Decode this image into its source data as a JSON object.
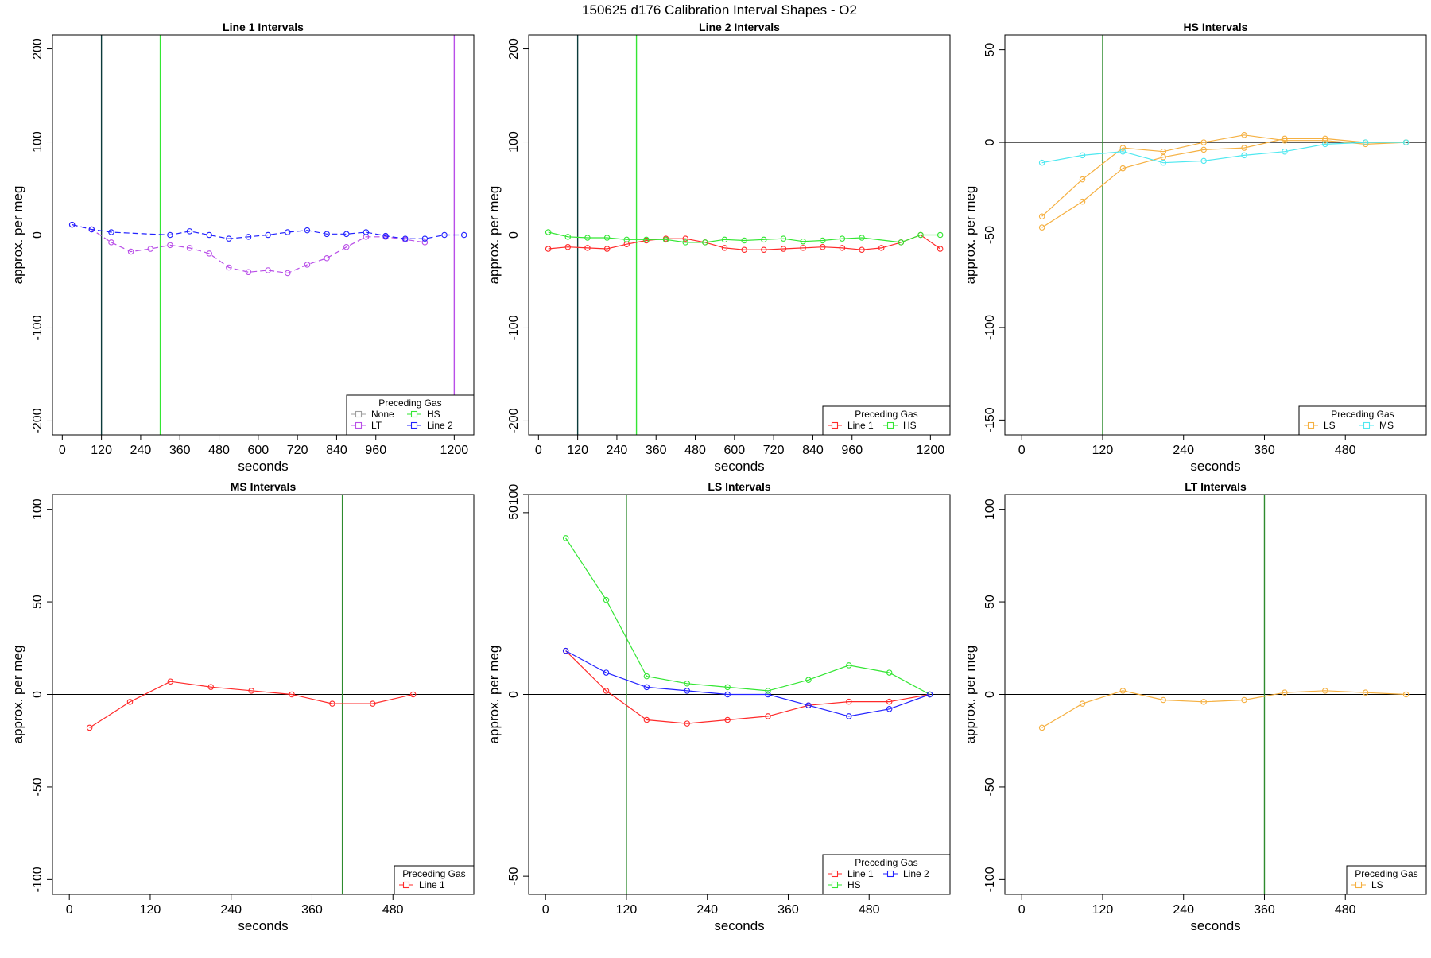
{
  "figure": {
    "title": "150625   d176   Calibration Interval Shapes - O2"
  },
  "colors": {
    "None": "#9e9e9e",
    "HS": "#33e633",
    "LT": "#b94fe8",
    "Line 2": "#2222ff",
    "Line 1": "#ff2a2a",
    "LS": "#f5b041",
    "MS": "#4ee8f0",
    "vline_dark": "#0b3b3b",
    "vline_green": "#2e8b2e"
  },
  "chart_data": [
    {
      "type": "line",
      "title": "Line 1 Intervals",
      "xlabel": "seconds",
      "ylabel": "approx. per meg",
      "xlim": [
        -30,
        1260
      ],
      "ylim": [
        -215,
        215
      ],
      "xticks": [
        0,
        120,
        240,
        360,
        480,
        600,
        720,
        840,
        960,
        1200
      ],
      "yticks": [
        -200,
        -100,
        0,
        100,
        200
      ],
      "hline": 0,
      "vlines": [
        {
          "x": 120,
          "color": "#0b3b3b"
        },
        {
          "x": 300,
          "color": "#33e633"
        },
        {
          "x": 1200,
          "color": "#b94fe8"
        }
      ],
      "legend": {
        "title": "Preceding Gas",
        "cols": 2,
        "entries": [
          "None",
          "HS",
          "LT",
          "Line 2"
        ]
      },
      "series": [
        {
          "name": "None",
          "dash": false,
          "points": []
        },
        {
          "name": "HS",
          "dash": true,
          "points": []
        },
        {
          "name": "LT",
          "dash": true,
          "points": [
            [
              30,
              11
            ],
            [
              90,
              6
            ],
            [
              150,
              -8
            ],
            [
              210,
              -18
            ],
            [
              270,
              -15
            ],
            [
              330,
              -11
            ],
            [
              390,
              -14
            ],
            [
              450,
              -20
            ],
            [
              510,
              -35
            ],
            [
              570,
              -40
            ],
            [
              630,
              -38
            ],
            [
              690,
              -41
            ],
            [
              750,
              -32
            ],
            [
              810,
              -25
            ],
            [
              870,
              -13
            ],
            [
              930,
              -2
            ],
            [
              990,
              -2
            ],
            [
              1050,
              -5
            ],
            [
              1110,
              -8
            ]
          ]
        },
        {
          "name": "Line 2",
          "dash": true,
          "points": [
            [
              30,
              11
            ],
            [
              90,
              6
            ],
            [
              150,
              3
            ],
            [
              330,
              0
            ],
            [
              390,
              4
            ],
            [
              450,
              0
            ],
            [
              510,
              -4
            ],
            [
              570,
              -2
            ],
            [
              630,
              0
            ],
            [
              690,
              3
            ],
            [
              750,
              5
            ],
            [
              810,
              1
            ],
            [
              870,
              1
            ],
            [
              930,
              3
            ],
            [
              990,
              -1
            ],
            [
              1050,
              -4
            ],
            [
              1110,
              -4
            ],
            [
              1170,
              0
            ],
            [
              1230,
              0
            ]
          ]
        }
      ]
    },
    {
      "type": "line",
      "title": "Line 2 Intervals",
      "xlabel": "seconds",
      "ylabel": "approx. per meg",
      "xlim": [
        -30,
        1260
      ],
      "ylim": [
        -215,
        215
      ],
      "xticks": [
        0,
        120,
        240,
        360,
        480,
        600,
        720,
        840,
        960,
        1200
      ],
      "yticks": [
        -200,
        -100,
        0,
        100,
        200
      ],
      "hline": 0,
      "vlines": [
        {
          "x": 120,
          "color": "#0b3b3b"
        },
        {
          "x": 300,
          "color": "#33e633"
        }
      ],
      "legend": {
        "title": "Preceding Gas",
        "cols": 2,
        "entries": [
          "Line 1",
          "HS"
        ]
      },
      "series": [
        {
          "name": "Line 1",
          "dash": false,
          "points": [
            [
              30,
              -15
            ],
            [
              90,
              -13
            ],
            [
              150,
              -14
            ],
            [
              210,
              -15
            ],
            [
              270,
              -10
            ],
            [
              330,
              -6
            ],
            [
              390,
              -4
            ],
            [
              450,
              -4
            ],
            [
              510,
              -8
            ],
            [
              570,
              -14
            ],
            [
              630,
              -16
            ],
            [
              690,
              -16
            ],
            [
              750,
              -15
            ],
            [
              810,
              -14
            ],
            [
              870,
              -13
            ],
            [
              930,
              -14
            ],
            [
              990,
              -16
            ],
            [
              1050,
              -14
            ],
            [
              1110,
              -8
            ],
            [
              1170,
              0
            ],
            [
              1230,
              -15
            ]
          ]
        },
        {
          "name": "HS",
          "dash": false,
          "points": [
            [
              30,
              3
            ],
            [
              90,
              -2
            ],
            [
              150,
              -3
            ],
            [
              210,
              -3
            ],
            [
              270,
              -5
            ],
            [
              330,
              -5
            ],
            [
              390,
              -5
            ],
            [
              450,
              -8
            ],
            [
              510,
              -8
            ],
            [
              570,
              -5
            ],
            [
              630,
              -6
            ],
            [
              690,
              -5
            ],
            [
              750,
              -4
            ],
            [
              810,
              -7
            ],
            [
              870,
              -6
            ],
            [
              930,
              -4
            ],
            [
              990,
              -3
            ],
            [
              1110,
              -8
            ],
            [
              1170,
              0
            ],
            [
              1230,
              0
            ]
          ]
        }
      ]
    },
    {
      "type": "line",
      "title": "HS Intervals",
      "xlabel": "seconds",
      "ylabel": "approx. per meg",
      "xlim": [
        -25,
        600
      ],
      "ylim": [
        -158,
        58
      ],
      "xticks": [
        0,
        120,
        240,
        360,
        480
      ],
      "yticks": [
        -150,
        -100,
        -50,
        0,
        50
      ],
      "hline": 0,
      "vlines": [
        {
          "x": 120,
          "color": "#2e8b2e"
        }
      ],
      "legend": {
        "title": "Preceding Gas",
        "cols": 2,
        "entries": [
          "LS",
          "MS"
        ]
      },
      "series": [
        {
          "name": "LS",
          "dash": false,
          "points": [
            [
              30,
              -40
            ],
            [
              90,
              -20
            ],
            [
              150,
              -3
            ],
            [
              210,
              -5
            ],
            [
              270,
              0
            ],
            [
              330,
              4
            ],
            [
              390,
              1
            ],
            [
              450,
              1
            ],
            [
              510,
              -1
            ],
            [
              570,
              0
            ]
          ]
        },
        {
          "name": "LS",
          "dash": false,
          "points": [
            [
              30,
              -46
            ],
            [
              90,
              -32
            ],
            [
              150,
              -14
            ],
            [
              210,
              -8
            ],
            [
              270,
              -4
            ],
            [
              330,
              -3
            ],
            [
              390,
              2
            ],
            [
              450,
              2
            ],
            [
              510,
              0
            ],
            [
              570,
              0
            ]
          ]
        },
        {
          "name": "MS",
          "dash": false,
          "points": [
            [
              30,
              -11
            ],
            [
              90,
              -7
            ],
            [
              150,
              -5
            ],
            [
              210,
              -11
            ],
            [
              270,
              -10
            ],
            [
              330,
              -7
            ],
            [
              390,
              -5
            ],
            [
              450,
              -1
            ],
            [
              510,
              0
            ],
            [
              570,
              0
            ]
          ]
        }
      ]
    },
    {
      "type": "line",
      "title": "MS Intervals",
      "xlabel": "seconds",
      "ylabel": "approx. per meg",
      "xlim": [
        -25,
        600
      ],
      "ylim": [
        -108,
        108
      ],
      "xticks": [
        0,
        120,
        240,
        360,
        480
      ],
      "yticks": [
        -100,
        -50,
        0,
        50,
        100
      ],
      "hline": 0,
      "vlines": [
        {
          "x": 405,
          "color": "#2e8b2e"
        }
      ],
      "legend": {
        "title": "Preceding Gas",
        "cols": 1,
        "entries": [
          "Line 1"
        ]
      },
      "series": [
        {
          "name": "Line 1",
          "dash": false,
          "points": [
            [
              30,
              -18
            ],
            [
              90,
              -4
            ],
            [
              150,
              7
            ],
            [
              210,
              4
            ],
            [
              270,
              2
            ],
            [
              330,
              0
            ],
            [
              390,
              -5
            ],
            [
              450,
              -5
            ],
            [
              510,
              0
            ]
          ]
        }
      ]
    },
    {
      "type": "line",
      "title": "LS Intervals",
      "xlabel": "seconds",
      "ylabel": "approx. per meg",
      "xlim": [
        -25,
        600
      ],
      "ylim": [
        -55,
        55
      ],
      "xticks": [
        0,
        120,
        240,
        360,
        480
      ],
      "yticks": [
        -50,
        0,
        50,
        100
      ],
      "yticks_shown": [
        -50,
        0,
        50
      ],
      "top_tick": 100,
      "hline": 0,
      "vlines": [
        {
          "x": 120,
          "color": "#2e8b2e"
        }
      ],
      "legend": {
        "title": "Preceding Gas",
        "cols": 2,
        "entries": [
          "Line 1",
          "Line 2",
          "HS"
        ]
      },
      "series": [
        {
          "name": "Line 1",
          "dash": false,
          "points": [
            [
              30,
              12
            ],
            [
              90,
              1
            ],
            [
              150,
              -7
            ],
            [
              210,
              -8
            ],
            [
              270,
              -7
            ],
            [
              330,
              -6
            ],
            [
              390,
              -3
            ],
            [
              450,
              -2
            ],
            [
              510,
              -2
            ],
            [
              570,
              0
            ]
          ]
        },
        {
          "name": "HS",
          "dash": false,
          "points": [
            [
              30,
              43
            ],
            [
              90,
              26
            ],
            [
              150,
              5
            ],
            [
              210,
              3
            ],
            [
              270,
              2
            ],
            [
              330,
              1
            ],
            [
              390,
              4
            ],
            [
              450,
              8
            ],
            [
              510,
              6
            ],
            [
              570,
              0
            ]
          ]
        },
        {
          "name": "Line 2",
          "dash": false,
          "points": [
            [
              30,
              12
            ],
            [
              90,
              6
            ],
            [
              150,
              2
            ],
            [
              210,
              1
            ],
            [
              270,
              0
            ],
            [
              330,
              0
            ],
            [
              390,
              -3
            ],
            [
              450,
              -6
            ],
            [
              510,
              -4
            ],
            [
              570,
              0
            ]
          ]
        }
      ]
    },
    {
      "type": "line",
      "title": "LT Intervals",
      "xlabel": "seconds",
      "ylabel": "approx. per meg",
      "xlim": [
        -25,
        600
      ],
      "ylim": [
        -108,
        108
      ],
      "xticks": [
        0,
        120,
        240,
        360,
        480
      ],
      "yticks": [
        -100,
        -50,
        0,
        50,
        100
      ],
      "hline": 0,
      "vlines": [
        {
          "x": 360,
          "color": "#2e8b2e"
        }
      ],
      "legend": {
        "title": "Preceding Gas",
        "cols": 1,
        "entries": [
          "LS"
        ]
      },
      "series": [
        {
          "name": "LS",
          "dash": false,
          "points": [
            [
              30,
              -18
            ],
            [
              90,
              -5
            ],
            [
              150,
              2
            ],
            [
              210,
              -3
            ],
            [
              270,
              -4
            ],
            [
              330,
              -3
            ],
            [
              390,
              1
            ],
            [
              450,
              2
            ],
            [
              510,
              1
            ],
            [
              570,
              0
            ]
          ]
        }
      ]
    }
  ]
}
